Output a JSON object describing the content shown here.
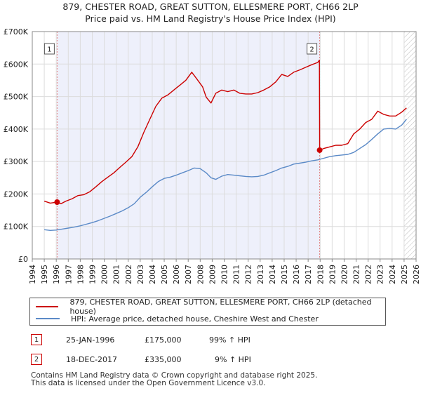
{
  "header": {
    "title_line1": "879, CHESTER ROAD, GREAT SUTTON, ELLESMERE PORT, CH66 2LP",
    "title_line2": "Price paid vs. HM Land Registry's House Price Index (HPI)"
  },
  "chart_data": {
    "type": "line",
    "xlim": [
      1994,
      2026
    ],
    "ylim": [
      0,
      700000
    ],
    "x_ticks": [
      1994,
      1995,
      1996,
      1997,
      1998,
      1999,
      2000,
      2001,
      2002,
      2003,
      2004,
      2005,
      2006,
      2007,
      2008,
      2009,
      2010,
      2011,
      2012,
      2013,
      2014,
      2015,
      2016,
      2017,
      2018,
      2019,
      2020,
      2021,
      2022,
      2023,
      2024,
      2025,
      2026
    ],
    "y_ticks": [
      0,
      100000,
      200000,
      300000,
      400000,
      500000,
      600000,
      700000
    ],
    "y_tick_labels": [
      "£0",
      "£100K",
      "£200K",
      "£300K",
      "£400K",
      "£500K",
      "£600K",
      "£700K"
    ],
    "grid": true,
    "shaded_ranges": [
      {
        "from": 1996.07,
        "to": 2017.96,
        "color": "#eef0fb"
      },
      {
        "from": 2025.0,
        "to": 2026.0,
        "hatched": true
      }
    ],
    "series": [
      {
        "name": "879, CHESTER ROAD, GREAT SUTTON, ELLESMERE PORT, CH66 2LP (detached house)",
        "color": "#cc0000",
        "x": [
          1995.0,
          1995.5,
          1996.07,
          1996.4,
          1996.8,
          1997.3,
          1997.8,
          1998.3,
          1998.8,
          1999.3,
          1999.8,
          2000.3,
          2000.8,
          2001.3,
          2001.8,
          2002.3,
          2002.8,
          2003.3,
          2003.8,
          2004.3,
          2004.8,
          2005.3,
          2005.8,
          2006.3,
          2006.8,
          2007.3,
          2007.7,
          2008.2,
          2008.5,
          2008.9,
          2009.3,
          2009.8,
          2010.3,
          2010.8,
          2011.3,
          2011.8,
          2012.3,
          2012.8,
          2013.3,
          2013.8,
          2014.3,
          2014.8,
          2015.3,
          2015.8,
          2016.3,
          2016.8,
          2017.3,
          2017.8,
          2017.94,
          2017.96,
          2018.3,
          2018.8,
          2019.3,
          2019.8,
          2020.3,
          2020.8,
          2021.3,
          2021.8,
          2022.3,
          2022.8,
          2023.3,
          2023.8,
          2024.3,
          2024.8,
          2025.2
        ],
        "values": [
          178000,
          172000,
          175000,
          170000,
          178000,
          185000,
          195000,
          198000,
          207000,
          222000,
          238000,
          252000,
          265000,
          282000,
          298000,
          315000,
          345000,
          390000,
          430000,
          470000,
          495000,
          505000,
          520000,
          535000,
          550000,
          575000,
          555000,
          530000,
          498000,
          480000,
          510000,
          520000,
          515000,
          520000,
          510000,
          508000,
          508000,
          512000,
          520000,
          530000,
          545000,
          568000,
          562000,
          575000,
          582000,
          590000,
          598000,
          605000,
          612000,
          335000,
          340000,
          345000,
          350000,
          350000,
          355000,
          385000,
          400000,
          420000,
          430000,
          455000,
          445000,
          440000,
          440000,
          452000,
          465000
        ]
      },
      {
        "name": "HPI: Average price, detached house, Cheshire West and Chester",
        "color": "#5b8ac7",
        "x": [
          1995.0,
          1995.5,
          1996.0,
          1996.5,
          1997.0,
          1997.5,
          1998.0,
          1998.5,
          1999.0,
          1999.5,
          2000.0,
          2000.5,
          2001.0,
          2001.5,
          2002.0,
          2002.5,
          2003.0,
          2003.5,
          2004.0,
          2004.5,
          2005.0,
          2005.5,
          2006.0,
          2006.5,
          2007.0,
          2007.5,
          2008.0,
          2008.5,
          2008.9,
          2009.3,
          2009.8,
          2010.3,
          2010.8,
          2011.3,
          2011.8,
          2012.3,
          2012.8,
          2013.3,
          2013.8,
          2014.3,
          2014.8,
          2015.3,
          2015.8,
          2016.3,
          2016.8,
          2017.3,
          2017.8,
          2018.3,
          2018.8,
          2019.3,
          2019.8,
          2020.3,
          2020.8,
          2021.3,
          2021.8,
          2022.3,
          2022.8,
          2023.3,
          2023.8,
          2024.3,
          2024.8,
          2025.2
        ],
        "values": [
          90000,
          88000,
          89000,
          92000,
          95000,
          98000,
          102000,
          107000,
          112000,
          118000,
          125000,
          132000,
          140000,
          148000,
          158000,
          170000,
          190000,
          205000,
          222000,
          238000,
          248000,
          252000,
          258000,
          265000,
          272000,
          280000,
          278000,
          265000,
          250000,
          245000,
          255000,
          260000,
          258000,
          256000,
          254000,
          253000,
          254000,
          258000,
          265000,
          272000,
          280000,
          285000,
          292000,
          295000,
          298000,
          302000,
          305000,
          310000,
          315000,
          318000,
          320000,
          322000,
          328000,
          340000,
          352000,
          368000,
          385000,
          400000,
          402000,
          400000,
          412000,
          430000
        ]
      }
    ],
    "annotations": [
      {
        "label": "1",
        "x": 1996.07,
        "value": 175000
      },
      {
        "label": "2",
        "x": 2017.96,
        "value": 335000
      }
    ]
  },
  "legend": {
    "entries": [
      {
        "label": "879, CHESTER ROAD, GREAT SUTTON, ELLESMERE PORT, CH66 2LP (detached house)",
        "color": "#cc0000"
      },
      {
        "label": "HPI: Average price, detached house, Cheshire West and Chester",
        "color": "#5b8ac7"
      }
    ]
  },
  "sales": [
    {
      "num": "1",
      "date": "25-JAN-1996",
      "price": "£175,000",
      "hpi": "99% ↑ HPI"
    },
    {
      "num": "2",
      "date": "18-DEC-2017",
      "price": "£335,000",
      "hpi": "9% ↑ HPI"
    }
  ],
  "footer": {
    "line1": "Contains HM Land Registry data © Crown copyright and database right 2025.",
    "line2": "This data is licensed under the Open Government Licence v3.0."
  }
}
